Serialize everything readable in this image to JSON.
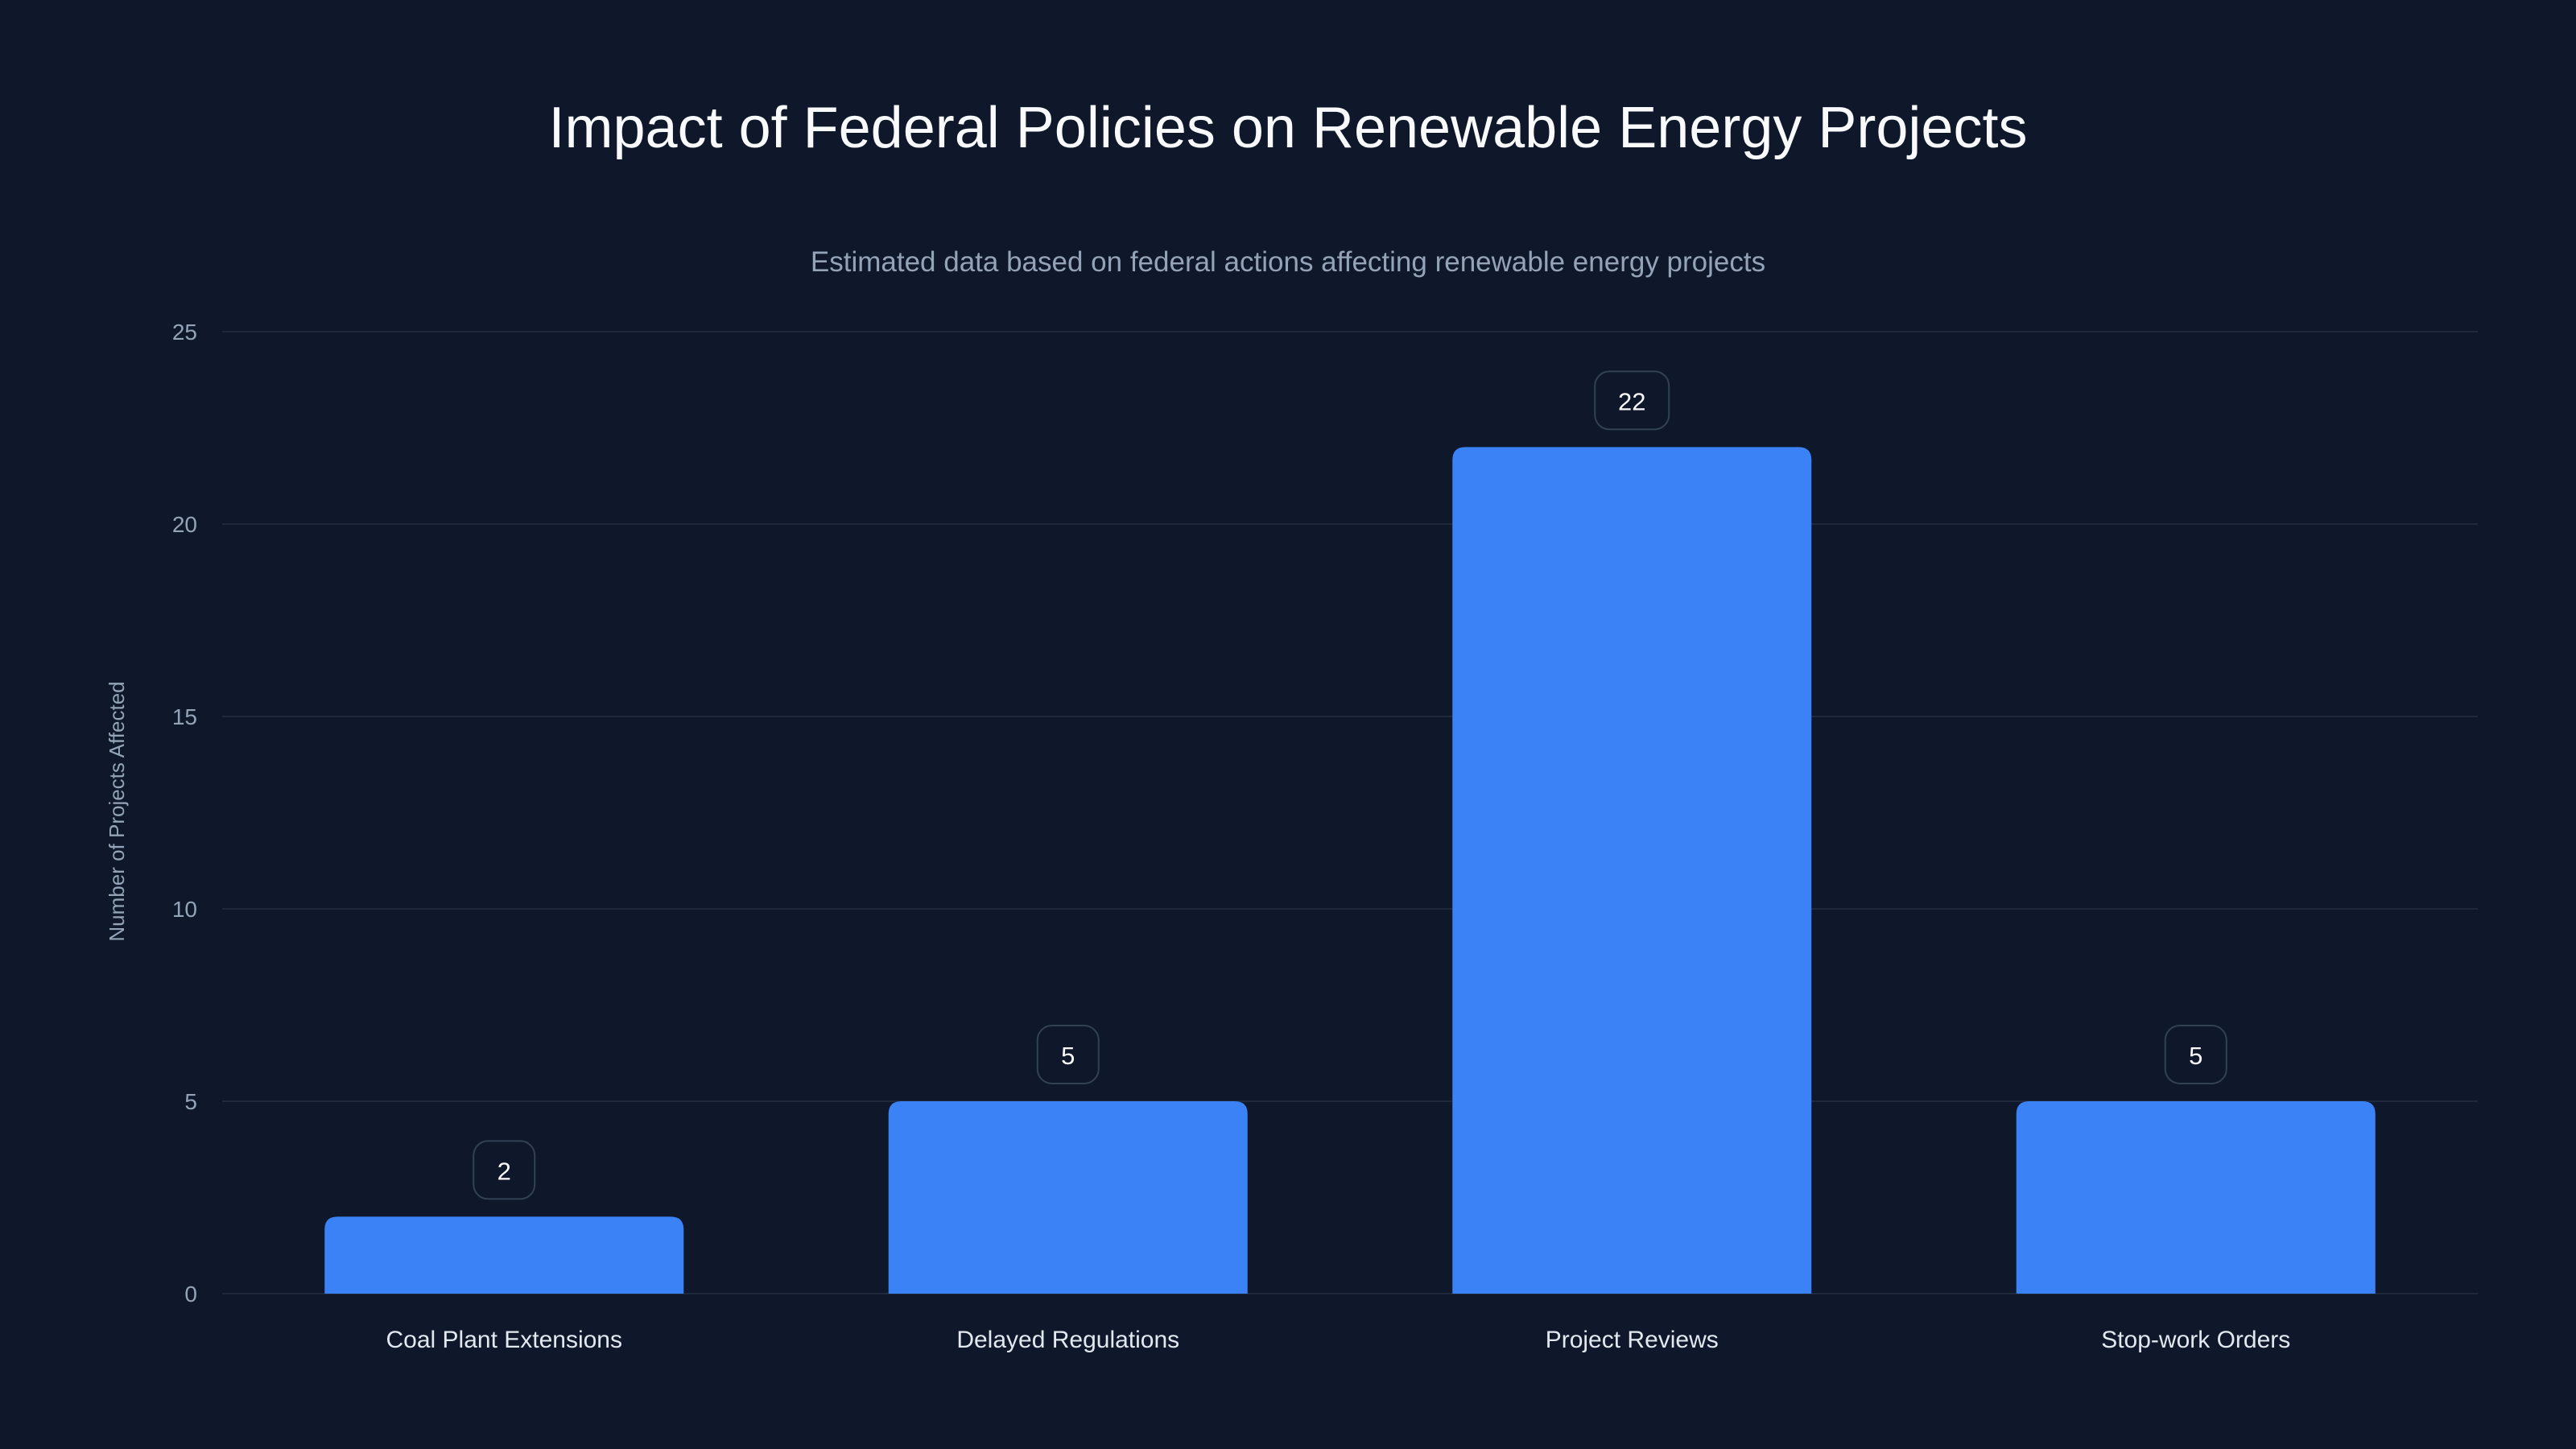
{
  "chart_data": {
    "type": "bar",
    "title": "Impact of Federal Policies on Renewable Energy Projects",
    "subtitle": "Estimated data based on federal actions affecting renewable energy projects",
    "xlabel": "",
    "ylabel": "Number of Projects Affected",
    "categories": [
      "Coal Plant Extensions",
      "Delayed Regulations",
      "Project Reviews",
      "Stop-work Orders"
    ],
    "values": [
      2,
      5,
      22,
      5
    ],
    "ylim": [
      0,
      25
    ],
    "yticks": [
      0,
      5,
      10,
      15,
      20,
      25
    ],
    "grid": true,
    "data_labels": true,
    "colors": {
      "background": "#0f172a",
      "bar": "#3b82f6",
      "grid": "#1e293b",
      "label_box_border": "#334155"
    }
  }
}
